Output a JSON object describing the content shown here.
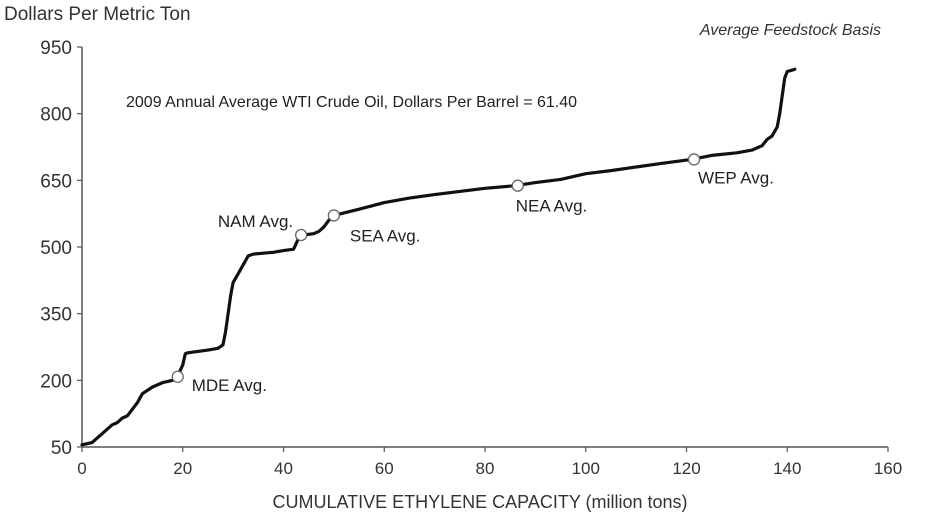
{
  "chart_data": {
    "type": "line",
    "title": "Average Feedstock Basis",
    "ylabel": "Dollars Per Metric Ton",
    "xlabel": "CUMULATIVE ETHYLENE CAPACITY (million tons)",
    "annotation": "2009 Annual Average WTI Crude Oil, Dollars Per Barrel = 61.40",
    "xlim": [
      0,
      160
    ],
    "ylim": [
      50,
      950
    ],
    "x_ticks": [
      0,
      20,
      40,
      60,
      80,
      100,
      120,
      140,
      160
    ],
    "y_ticks": [
      50,
      200,
      350,
      500,
      650,
      800,
      950
    ],
    "grid": false,
    "series": [
      {
        "x": [
          0,
          2,
          3,
          4,
          5,
          6,
          7,
          8,
          9,
          10,
          11,
          12,
          14,
          16,
          18,
          19,
          20,
          20.5,
          21,
          23,
          25,
          27,
          28,
          28.5,
          29,
          29.5,
          30,
          31,
          32,
          33,
          34,
          36,
          38,
          40,
          42,
          43,
          44,
          46,
          47,
          48,
          49,
          50,
          55,
          60,
          65,
          70,
          75,
          80,
          86,
          90,
          95,
          100,
          105,
          110,
          115,
          121,
          125,
          130,
          133,
          135,
          136,
          137,
          138,
          138.5,
          139,
          139.5,
          140,
          141,
          141.5
        ],
        "y": [
          55,
          60,
          70,
          80,
          90,
          100,
          105,
          115,
          120,
          135,
          150,
          170,
          185,
          195,
          200,
          210,
          235,
          260,
          262,
          265,
          268,
          272,
          280,
          310,
          350,
          390,
          420,
          440,
          460,
          480,
          484,
          486,
          488,
          492,
          495,
          520,
          527,
          530,
          535,
          545,
          560,
          571,
          585,
          600,
          610,
          618,
          625,
          632,
          638,
          645,
          652,
          665,
          672,
          680,
          688,
          697,
          706,
          712,
          718,
          728,
          742,
          750,
          770,
          800,
          840,
          880,
          895,
          898,
          900
        ]
      }
    ],
    "markers": [
      {
        "label": "MDE Avg.",
        "x": 19,
        "y": 208
      },
      {
        "label": "NAM Avg.",
        "x": 43.5,
        "y": 527
      },
      {
        "label": "SEA Avg.",
        "x": 50,
        "y": 571
      },
      {
        "label": "NEA Avg.",
        "x": 86.5,
        "y": 638
      },
      {
        "label": "WEP Avg.",
        "x": 121.5,
        "y": 697
      }
    ]
  }
}
